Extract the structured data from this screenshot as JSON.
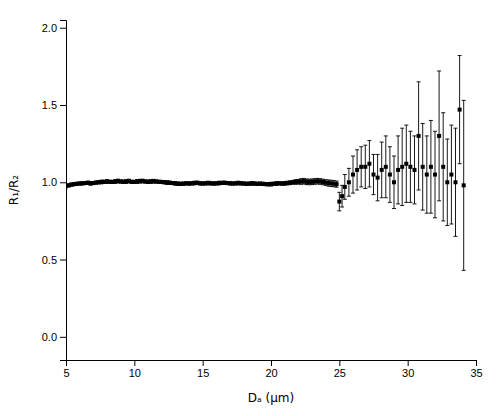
{
  "chart_data": {
    "type": "scatter",
    "xlabel": "Dₐ (μm)",
    "ylabel": "R₁/R₂",
    "xlim": [
      5,
      35
    ],
    "ylim": [
      -0.15,
      2.05
    ],
    "xticks": [
      5,
      10,
      15,
      20,
      25,
      30,
      35
    ],
    "yticks": [
      {
        "value": 0.0,
        "label": "0.0"
      },
      0.5,
      {
        "value": 1.0,
        "label": "1.0"
      },
      1.5,
      {
        "value": 2.0,
        "label": "2.0"
      }
    ],
    "color": "#000000",
    "marker": "square",
    "x": [
      5.0,
      5.2,
      5.4,
      5.6,
      5.8,
      6.0,
      6.2,
      6.4,
      6.6,
      6.8,
      7.0,
      7.2,
      7.4,
      7.6,
      7.8,
      8.0,
      8.2,
      8.4,
      8.6,
      8.8,
      9.0,
      9.2,
      9.4,
      9.6,
      9.8,
      10.0,
      10.2,
      10.4,
      10.6,
      10.8,
      11.0,
      11.2,
      11.4,
      11.6,
      11.8,
      12.0,
      12.2,
      12.4,
      12.6,
      12.8,
      13.0,
      13.2,
      13.4,
      13.6,
      13.8,
      14.0,
      14.2,
      14.4,
      14.6,
      14.8,
      15.0,
      15.2,
      15.4,
      15.6,
      15.8,
      16.0,
      16.2,
      16.4,
      16.6,
      16.8,
      17.0,
      17.2,
      17.4,
      17.6,
      17.8,
      18.0,
      18.2,
      18.4,
      18.6,
      18.8,
      19.0,
      19.2,
      19.4,
      19.6,
      19.8,
      20.0,
      20.2,
      20.4,
      20.6,
      20.8,
      21.0,
      21.2,
      21.4,
      21.6,
      21.8,
      22.0,
      22.2,
      22.4,
      22.6,
      22.8,
      23.0,
      23.2,
      23.4,
      23.6,
      23.8,
      24.0,
      24.2,
      24.4,
      24.6,
      24.8,
      25.0,
      25.2,
      25.4,
      25.7,
      26.0,
      26.3,
      26.6,
      26.9,
      27.2,
      27.5,
      27.8,
      28.1,
      28.4,
      28.7,
      29.0,
      29.3,
      29.6,
      29.9,
      30.2,
      30.5,
      30.8,
      31.1,
      31.4,
      31.7,
      32.0,
      32.3,
      32.6,
      32.9,
      33.2,
      33.5,
      33.8,
      34.1
    ],
    "values": [
      0.975,
      0.98,
      0.985,
      0.988,
      0.99,
      0.992,
      0.993,
      0.995,
      0.997,
      0.993,
      0.995,
      0.998,
      1.0,
      1.002,
      1.003,
      1.005,
      1.003,
      1.002,
      1.005,
      1.008,
      1.005,
      1.003,
      1.005,
      1.008,
      1.003,
      1.002,
      1.005,
      1.007,
      1.008,
      1.005,
      1.003,
      1.005,
      1.007,
      1.005,
      1.003,
      1.002,
      1.0,
      0.998,
      0.997,
      0.995,
      0.993,
      0.991,
      0.99,
      0.991,
      0.993,
      0.992,
      0.993,
      0.995,
      0.997,
      0.993,
      0.992,
      0.993,
      0.995,
      0.993,
      0.992,
      0.993,
      0.995,
      0.996,
      0.997,
      0.995,
      0.993,
      0.992,
      0.993,
      0.995,
      0.993,
      0.992,
      0.99,
      0.991,
      0.993,
      0.992,
      0.99,
      0.991,
      0.99,
      0.988,
      0.987,
      0.988,
      0.99,
      0.992,
      0.993,
      0.992,
      0.993,
      0.995,
      0.997,
      1.0,
      1.002,
      1.003,
      1.005,
      1.007,
      1.003,
      1.002,
      1.003,
      1.005,
      1.007,
      1.005,
      1.002,
      0.998,
      0.995,
      0.993,
      0.991,
      0.988,
      0.875,
      0.91,
      0.97,
      1.0,
      1.05,
      1.08,
      1.1,
      1.1,
      1.12,
      1.05,
      1.03,
      1.08,
      1.1,
      1.05,
      1.0,
      1.08,
      1.1,
      1.12,
      1.1,
      1.08,
      1.3,
      1.1,
      1.05,
      1.1,
      1.05,
      1.3,
      1.1,
      1.0,
      1.05,
      1.0,
      1.47,
      0.98
    ],
    "errors": [
      0.01,
      0.01,
      0.01,
      0.01,
      0.01,
      0.01,
      0.01,
      0.01,
      0.01,
      0.012,
      0.01,
      0.01,
      0.01,
      0.012,
      0.01,
      0.012,
      0.01,
      0.01,
      0.012,
      0.012,
      0.01,
      0.01,
      0.012,
      0.012,
      0.01,
      0.01,
      0.012,
      0.012,
      0.012,
      0.01,
      0.01,
      0.012,
      0.012,
      0.01,
      0.01,
      0.01,
      0.01,
      0.012,
      0.01,
      0.01,
      0.012,
      0.01,
      0.01,
      0.01,
      0.01,
      0.01,
      0.01,
      0.012,
      0.01,
      0.01,
      0.01,
      0.01,
      0.012,
      0.01,
      0.01,
      0.01,
      0.012,
      0.01,
      0.01,
      0.01,
      0.01,
      0.01,
      0.01,
      0.012,
      0.01,
      0.01,
      0.01,
      0.01,
      0.012,
      0.01,
      0.01,
      0.01,
      0.01,
      0.01,
      0.01,
      0.012,
      0.01,
      0.012,
      0.01,
      0.01,
      0.012,
      0.012,
      0.012,
      0.012,
      0.015,
      0.015,
      0.018,
      0.018,
      0.018,
      0.018,
      0.018,
      0.018,
      0.018,
      0.018,
      0.018,
      0.018,
      0.02,
      0.02,
      0.02,
      0.02,
      0.06,
      0.07,
      0.08,
      0.09,
      0.12,
      0.13,
      0.13,
      0.14,
      0.15,
      0.13,
      0.15,
      0.18,
      0.2,
      0.18,
      0.17,
      0.22,
      0.25,
      0.25,
      0.23,
      0.22,
      0.35,
      0.28,
      0.25,
      0.3,
      0.28,
      0.42,
      0.35,
      0.28,
      0.32,
      0.35,
      0.35,
      0.55
    ]
  }
}
